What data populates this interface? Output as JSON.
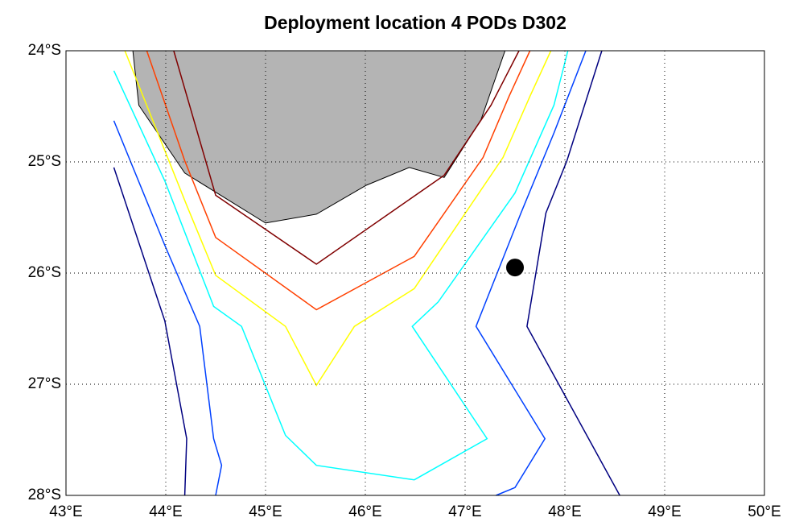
{
  "chart_data": {
    "type": "line",
    "title": "Deployment location 4 PODs D302",
    "xlim": [
      43,
      50
    ],
    "ylim": [
      -28,
      -24
    ],
    "grid": true,
    "xticks": [
      {
        "value": 43,
        "label": "43°E"
      },
      {
        "value": 44,
        "label": "44°E"
      },
      {
        "value": 45,
        "label": "45°E"
      },
      {
        "value": 46,
        "label": "46°E"
      },
      {
        "value": 47,
        "label": "47°E"
      },
      {
        "value": 48,
        "label": "48°E"
      },
      {
        "value": 49,
        "label": "49°E"
      },
      {
        "value": 50,
        "label": "50°E"
      }
    ],
    "yticks": [
      {
        "value": -24,
        "label": "24°S"
      },
      {
        "value": -25,
        "label": "25°S"
      },
      {
        "value": -26,
        "label": "26°S"
      },
      {
        "value": -27,
        "label": "27°S"
      },
      {
        "value": -28,
        "label": "28°S"
      }
    ],
    "series": [
      {
        "color": "#b4b4b4",
        "fill": true,
        "x": [
          43.67,
          43.73,
          44.19,
          45.0,
          45.51,
          46.01,
          46.44,
          46.79,
          47.16,
          47.4
        ],
        "values": [
          -24.0,
          -24.49,
          -25.1,
          -25.55,
          -25.47,
          -25.21,
          -25.05,
          -25.14,
          -24.62,
          -24.0
        ]
      },
      {
        "color": "#800000",
        "x": [
          44.08,
          44.5,
          45.51,
          46.79,
          47.26,
          47.54
        ],
        "values": [
          -24.0,
          -25.3,
          -25.92,
          -25.12,
          -24.49,
          -24.0
        ]
      },
      {
        "color": "#ff4000",
        "x": [
          43.81,
          44.19,
          44.5,
          45.51,
          46.49,
          47.18,
          47.44,
          47.65
        ],
        "values": [
          -24.0,
          -24.99,
          -25.68,
          -26.33,
          -25.85,
          -24.96,
          -24.41,
          -24.0
        ]
      },
      {
        "color": "#ffff00",
        "x": [
          43.59,
          44.21,
          44.5,
          45.2,
          45.51,
          45.89,
          46.49,
          47.38,
          47.65,
          47.86
        ],
        "values": [
          -24.0,
          -25.39,
          -26.02,
          -26.48,
          -27.01,
          -26.48,
          -26.14,
          -24.96,
          -24.41,
          -24.0
        ]
      },
      {
        "color": "#00ffff",
        "x": [
          43.48,
          43.99,
          44.48,
          44.76,
          45.2,
          45.51,
          46.49,
          47.22,
          46.47,
          46.73,
          47.5,
          47.89,
          48.03
        ],
        "values": [
          -24.18,
          -25.17,
          -26.3,
          -26.48,
          -27.46,
          -27.73,
          -27.86,
          -27.49,
          -26.48,
          -26.26,
          -25.28,
          -24.49,
          -24.0
        ]
      },
      {
        "color": "#0040ff",
        "x": [
          43.48,
          43.99,
          44.34,
          44.48,
          44.56,
          44.5
        ],
        "values": [
          -24.63,
          -25.75,
          -26.48,
          -27.49,
          -27.73,
          -28.0
        ]
      },
      {
        "color": "#0040ff",
        "x": [
          47.31,
          47.5,
          47.8,
          47.11,
          47.56,
          47.89,
          48.21
        ],
        "values": [
          -28.0,
          -27.93,
          -27.49,
          -26.48,
          -25.46,
          -24.74,
          -24.0
        ]
      },
      {
        "color": "#000080",
        "x": [
          43.48,
          43.99,
          44.21,
          44.19
        ],
        "values": [
          -25.05,
          -26.43,
          -27.49,
          -28.0
        ]
      },
      {
        "color": "#000080",
        "x": [
          48.37,
          48.02,
          47.81,
          47.62,
          48.55
        ],
        "values": [
          -24.0,
          -24.99,
          -25.46,
          -26.48,
          -28.0
        ]
      },
      {
        "color": "#000000",
        "marker": true,
        "x": [
          47.5
        ],
        "values": [
          -25.95
        ]
      }
    ]
  }
}
